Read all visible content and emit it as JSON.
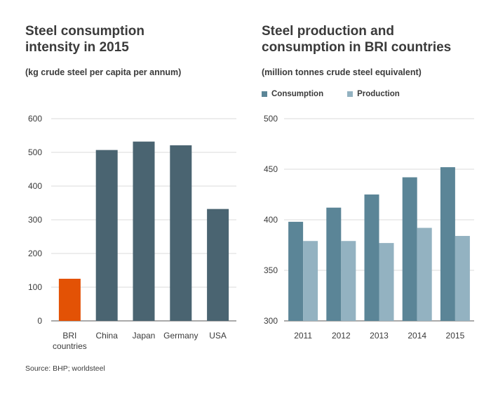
{
  "charts": {
    "left": {
      "title": "Steel consumption\nintensity in 2015",
      "subtitle": "(kg crude steel per capita per annum)"
    },
    "right": {
      "title": "Steel production and\nconsumption in BRI countries",
      "subtitle": "(million tonnes crude steel equivalent)",
      "legend": [
        "Consumption",
        "Production"
      ]
    }
  },
  "source": "Source:  BHP; worldsteel",
  "chart_data": [
    {
      "type": "bar",
      "title": "Steel consumption intensity in 2015",
      "subtitle": "(kg crude steel per capita per annum)",
      "categories": [
        "BRI\ncountries",
        "China",
        "Japan",
        "Germany",
        "USA"
      ],
      "values": [
        125,
        507,
        532,
        521,
        332
      ],
      "bar_colors": [
        "#e35205",
        "#4a6471",
        "#4a6471",
        "#4a6471",
        "#4a6471"
      ],
      "ylim": [
        0,
        600
      ],
      "yticks": [
        0,
        100,
        200,
        300,
        400,
        500,
        600
      ],
      "grid": true
    },
    {
      "type": "bar",
      "title": "Steel production and consumption in BRI countries",
      "subtitle": "(million tonnes crude steel equivalent)",
      "categories": [
        "2011",
        "2012",
        "2013",
        "2014",
        "2015"
      ],
      "series": [
        {
          "name": "Consumption",
          "color": "#5b8597",
          "values": [
            398,
            412,
            425,
            442,
            452
          ]
        },
        {
          "name": "Production",
          "color": "#93b2c1",
          "values": [
            379,
            379,
            377,
            392,
            384
          ]
        }
      ],
      "ylim": [
        300,
        500
      ],
      "yticks": [
        300,
        350,
        400,
        450,
        500
      ],
      "legend_position": "top-left",
      "grid": true
    }
  ]
}
